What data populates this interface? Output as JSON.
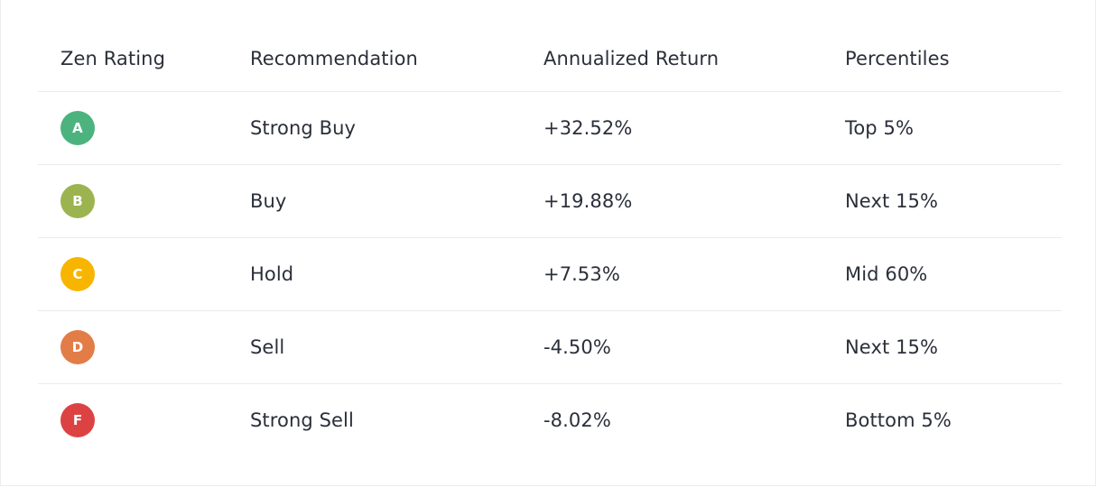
{
  "headers": {
    "rating": "Zen Rating",
    "recommendation": "Recommendation",
    "return": "Annualized Return",
    "percentiles": "Percentiles"
  },
  "rows": [
    {
      "grade": "A",
      "color": "#4db37e",
      "recommendation": "Strong Buy",
      "return": "+32.52%",
      "percentile": "Top 5%"
    },
    {
      "grade": "B",
      "color": "#9cb44f",
      "recommendation": "Buy",
      "return": "+19.88%",
      "percentile": "Next 15%"
    },
    {
      "grade": "C",
      "color": "#f7b500",
      "recommendation": "Hold",
      "return": "+7.53%",
      "percentile": "Mid 60%"
    },
    {
      "grade": "D",
      "color": "#e27d48",
      "recommendation": "Sell",
      "return": "-4.50%",
      "percentile": "Next 15%"
    },
    {
      "grade": "F",
      "color": "#dd4242",
      "recommendation": "Strong Sell",
      "return": "-8.02%",
      "percentile": "Bottom 5%"
    }
  ]
}
